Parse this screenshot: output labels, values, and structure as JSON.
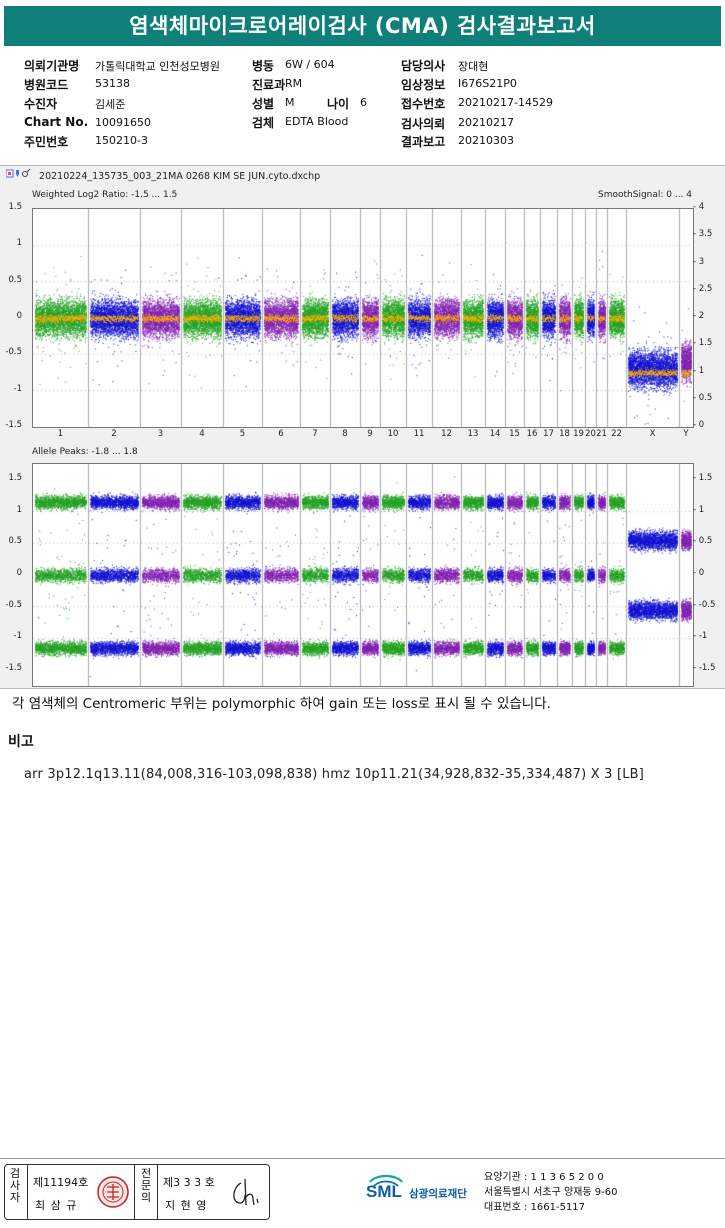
{
  "header": {
    "title": "염색체마이크로어레이검사 (CMA) 검사결과보고서"
  },
  "patient_info": {
    "col1": [
      {
        "label": "의뢰기관명",
        "value": "가톨릭대학교 인천성모병원"
      },
      {
        "label": "병원코드",
        "value": "53138"
      },
      {
        "label": "수진자",
        "value": "김세준"
      },
      {
        "label": "Chart No.",
        "value": "10091650"
      },
      {
        "label": "주민번호",
        "value": "150210-3"
      }
    ],
    "col2": [
      {
        "label": "병동",
        "value": "6W / 604"
      },
      {
        "label": "진료과",
        "value": "RM"
      },
      {
        "label": "성별",
        "value": "M"
      },
      {
        "label": "검체",
        "value": "EDTA Blood"
      }
    ],
    "age": {
      "label": "나이",
      "value": "6"
    },
    "col3": [
      {
        "label": "담당의사",
        "value": "장대현"
      },
      {
        "label": "임상정보",
        "value": "I676S21P0"
      },
      {
        "label": "접수번호",
        "value": "20210217-14529"
      },
      {
        "label": "검사의뢰",
        "value": "20210217"
      },
      {
        "label": "결과보고",
        "value": "20210303"
      }
    ]
  },
  "plot": {
    "file_name": "20210224_135735_003_21MA 0268 KIM SE JUN.cyto.dxchp",
    "top_panel_label": "Weighted Log2 Ratio: -1.5 ... 1.5",
    "smooth_label": "SmoothSignal: 0 ... 4",
    "bottom_panel_label": "Allele Peaks: -1.8 ... 1.8",
    "top_left_ticks": [
      "1.5",
      "1",
      "0.5",
      "0",
      "-0.5",
      "-1",
      "-1.5"
    ],
    "top_right_ticks": [
      "4",
      "3.5",
      "3",
      "2.5",
      "2",
      "1.5",
      "1",
      "0.5",
      "0"
    ],
    "bottom_left_ticks": [
      "1.5",
      "1",
      "0.5",
      "0",
      "-0.5",
      "-1",
      "-1.5"
    ],
    "bottom_right_ticks": [
      "1.5",
      "1",
      "0.5",
      "0",
      "-0.5",
      "-1",
      "-1.5"
    ],
    "chromosomes": [
      "1",
      "2",
      "3",
      "4",
      "5",
      "6",
      "7",
      "8",
      "9",
      "10",
      "11",
      "12",
      "13",
      "14",
      "15",
      "16",
      "17",
      "18",
      "19",
      "20",
      "21",
      "22",
      "X",
      "Y"
    ],
    "colors": {
      "green": "#22a022",
      "blue": "#1010d0",
      "purple": "#8020b0",
      "orange": "#ffb000"
    }
  },
  "note": "각 염색체의 Centromeric 부위는 polymorphic 하여 gain 또는 loss로 표시 될 수 있습니다.",
  "remarks": {
    "heading": "비고",
    "text": "arr 3p12.1q13.11(84,008,316-103,098,838) hmz 10p11.21(34,928,832-35,334,487) X 3 [LB]"
  },
  "signatures": {
    "inspector_label": "검사자",
    "inspector_license": "제11194호",
    "inspector_name": "최 삼 규",
    "doctor_label": "전문의",
    "doctor_license": "제3 3 3 호",
    "doctor_name": "지 현 영"
  },
  "institution": {
    "logo": "SML",
    "name": "삼광의료재단",
    "code": "요양기관 : 1 1 3 6 5 2 0 0",
    "address": "서울특별시 서초구 양재동 9-60",
    "phone": "대표번호 : 1661-5117"
  }
}
